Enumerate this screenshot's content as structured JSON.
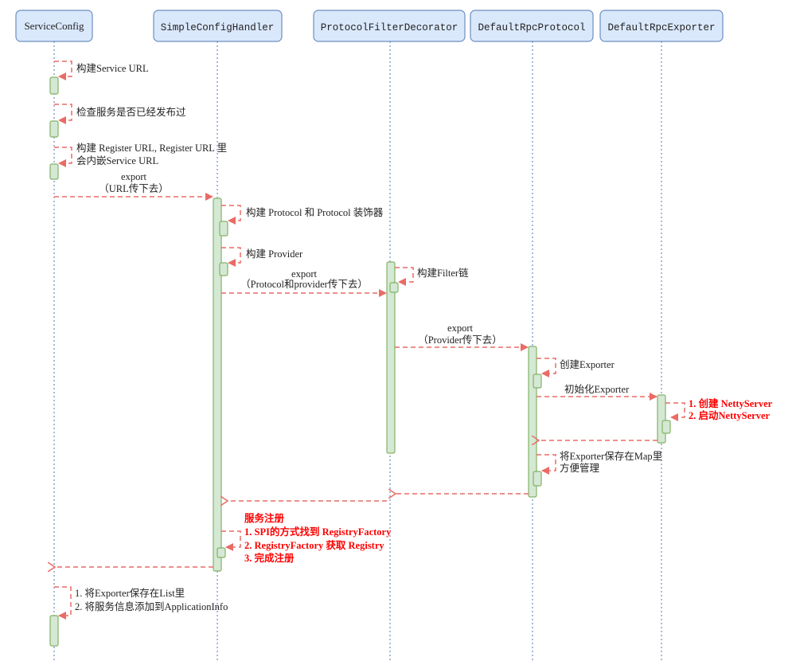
{
  "participants": [
    "ServiceConfig",
    "SimpleConfigHandler",
    "ProtocolFilterDecorator",
    "DefaultRpcProtocol",
    "DefaultRpcExporter"
  ],
  "messages": {
    "build_service_url": "构建Service URL",
    "check_published": "检查服务是否已经发布过",
    "build_register_url_1": "构建 Register URL, Register URL 里",
    "build_register_url_2": "会内嵌Service URL",
    "export1_1": "export",
    "export1_2": "（URL传下去）",
    "build_protocol": "构建 Protocol 和 Protocol 装饰器",
    "build_provider": "构建 Provider",
    "export2_1": "export",
    "export2_2": "（Protocol和provider传下去）",
    "build_filter": "构建Filter链",
    "export3_1": "export",
    "export3_2": "（Provider传下去）",
    "create_exporter": "创建Exporter",
    "init_exporter": "初始化Exporter",
    "netty_1": "1. 创建 NettyServer",
    "netty_2": "2. 启动NettyServer",
    "save_map_1": "将Exporter保存在Map里",
    "save_map_2": "方便管理",
    "register_0": "服务注册",
    "register_1": "1. SPI的方式找到 RegistryFactory",
    "register_2": "2. RegistryFactory 获取 Registry",
    "register_3": "3. 完成注册",
    "final_1": "1. 将Exporter保存在List里",
    "final_2": "2. 将服务信息添加到ApplicationInfo"
  },
  "colors": {
    "arrow": "#ea6b66",
    "header_fill": "#dae8fc",
    "header_stroke": "#6c8ebf",
    "activation_fill": "#d5e8d4",
    "activation_stroke": "#82b366",
    "highlight": "#ff0000"
  }
}
